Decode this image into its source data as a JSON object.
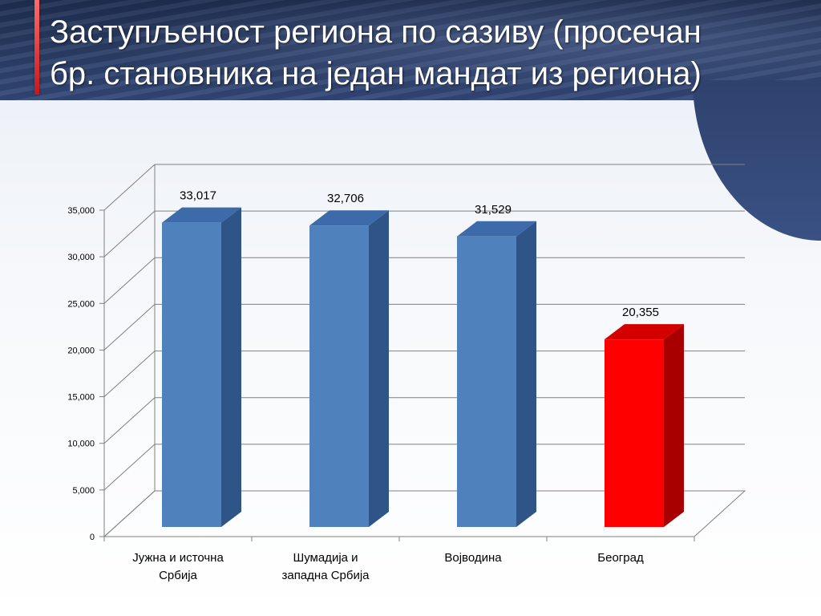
{
  "slide": {
    "title_line1": "Заступљеност региона по сазиву (просечан",
    "title_line2": "бр. становника на један мандат из региона)"
  },
  "chart_data": {
    "type": "bar",
    "categories": [
      [
        "Јужна и источна",
        "Србија"
      ],
      [
        "Шумадија и",
        "западна Србија"
      ],
      [
        "Војводина"
      ],
      [
        "Београд"
      ]
    ],
    "values": [
      33017,
      32706,
      31529,
      20355
    ],
    "data_labels": [
      "33,017",
      "32,706",
      "31,529",
      "20,355"
    ],
    "ylim": [
      0,
      35000
    ],
    "yticks": [
      0,
      5000,
      10000,
      15000,
      20000,
      25000,
      30000,
      35000
    ],
    "ytick_labels": [
      "0",
      "5,000",
      "10,000",
      "15,000",
      "20,000",
      "25,000",
      "30,000",
      "35,000"
    ],
    "grid": true,
    "legend": "none",
    "title": "",
    "xlabel": "",
    "ylabel": "",
    "colors": {
      "default_front": "#4f81bd",
      "default_top": "#3d6aa8",
      "default_side": "#2f5488",
      "highlight_front": "#ff0000",
      "highlight_top": "#d40000",
      "highlight_side": "#a80000",
      "grid": "#808080"
    },
    "highlight_index": 3
  }
}
